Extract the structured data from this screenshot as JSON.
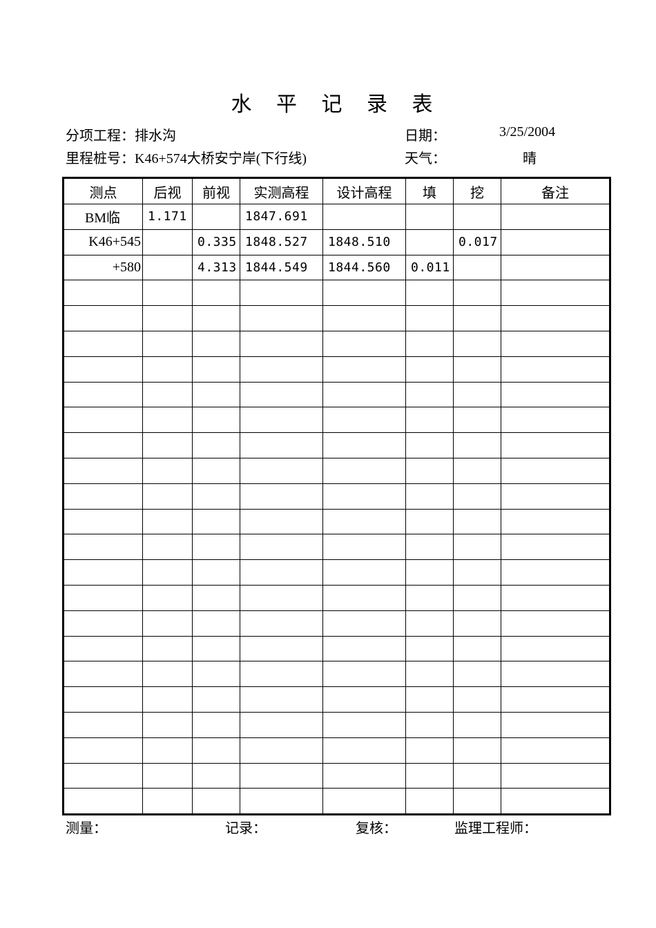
{
  "title": "水 平 记 录 表",
  "info": {
    "item_label": "分项工程：",
    "item_value": "排水沟",
    "date_label": "日期：",
    "date_value": "3/25/2004",
    "station_label": "里程桩号：",
    "station_value": "K46+574大桥安宁岸(下行线)",
    "weather_label": "天气：",
    "weather_value": "晴"
  },
  "table": {
    "headers": [
      "测点",
      "后视",
      "前视",
      "实测高程",
      "设计高程",
      "填",
      "挖",
      "备注"
    ],
    "rows": [
      [
        "BM临",
        "1.171",
        "",
        "1847.691",
        "",
        "",
        "",
        ""
      ],
      [
        "K46+545",
        "",
        "0.335",
        "1848.527",
        "1848.510",
        "",
        "0.017",
        ""
      ],
      [
        "+580",
        "",
        "4.313",
        "1844.549",
        "1844.560",
        "0.011",
        "",
        ""
      ]
    ]
  },
  "footer": {
    "surveyor": "测量：",
    "recorder": "记录：",
    "checker": "复核：",
    "supervisor": "监理工程师："
  }
}
